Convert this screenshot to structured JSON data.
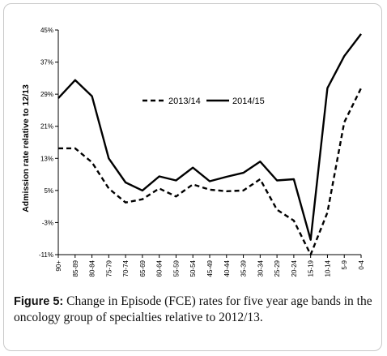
{
  "caption": {
    "label": "Figure 5:",
    "text": " Change in Episode (FCE) rates for five year age bands in the oncology group of specialties relative to 2012/13."
  },
  "chart_data": {
    "type": "line",
    "ylabel": "Admission rate relative to 12/13",
    "xlabel": "",
    "ylim": [
      -11,
      45
    ],
    "y_ticks": [
      -11,
      -3,
      5,
      13,
      21,
      29,
      37,
      45
    ],
    "y_tick_labels": [
      "-11%",
      "-3%",
      "5%",
      "13%",
      "21%",
      "29%",
      "37%",
      "45%"
    ],
    "grid": false,
    "legend_position": "top-center",
    "categories": [
      "90+",
      "85-89",
      "80-84",
      "75-79",
      "70-74",
      "65-69",
      "60-64",
      "55-59",
      "50-54",
      "45-49",
      "40-44",
      "35-39",
      "30-34",
      "25-29",
      "20-24",
      "15-19",
      "10-14",
      "5-9",
      "0-4"
    ],
    "series": [
      {
        "name": "2013/14",
        "style": "dashed",
        "color": "#000000",
        "values": [
          15.5,
          15.5,
          12,
          5.5,
          2,
          2.8,
          5.5,
          3.5,
          6.5,
          5.2,
          4.8,
          5,
          7.8,
          0.2,
          -2.5,
          -11,
          -0.5,
          22,
          30.5
        ]
      },
      {
        "name": "2014/15",
        "style": "solid",
        "color": "#000000",
        "values": [
          28,
          32.5,
          28.5,
          13,
          7,
          5,
          8.5,
          7.5,
          10.7,
          7.3,
          8.4,
          9.4,
          12.2,
          7.5,
          7.8,
          -7.3,
          30.5,
          38.5,
          44
        ]
      }
    ]
  }
}
